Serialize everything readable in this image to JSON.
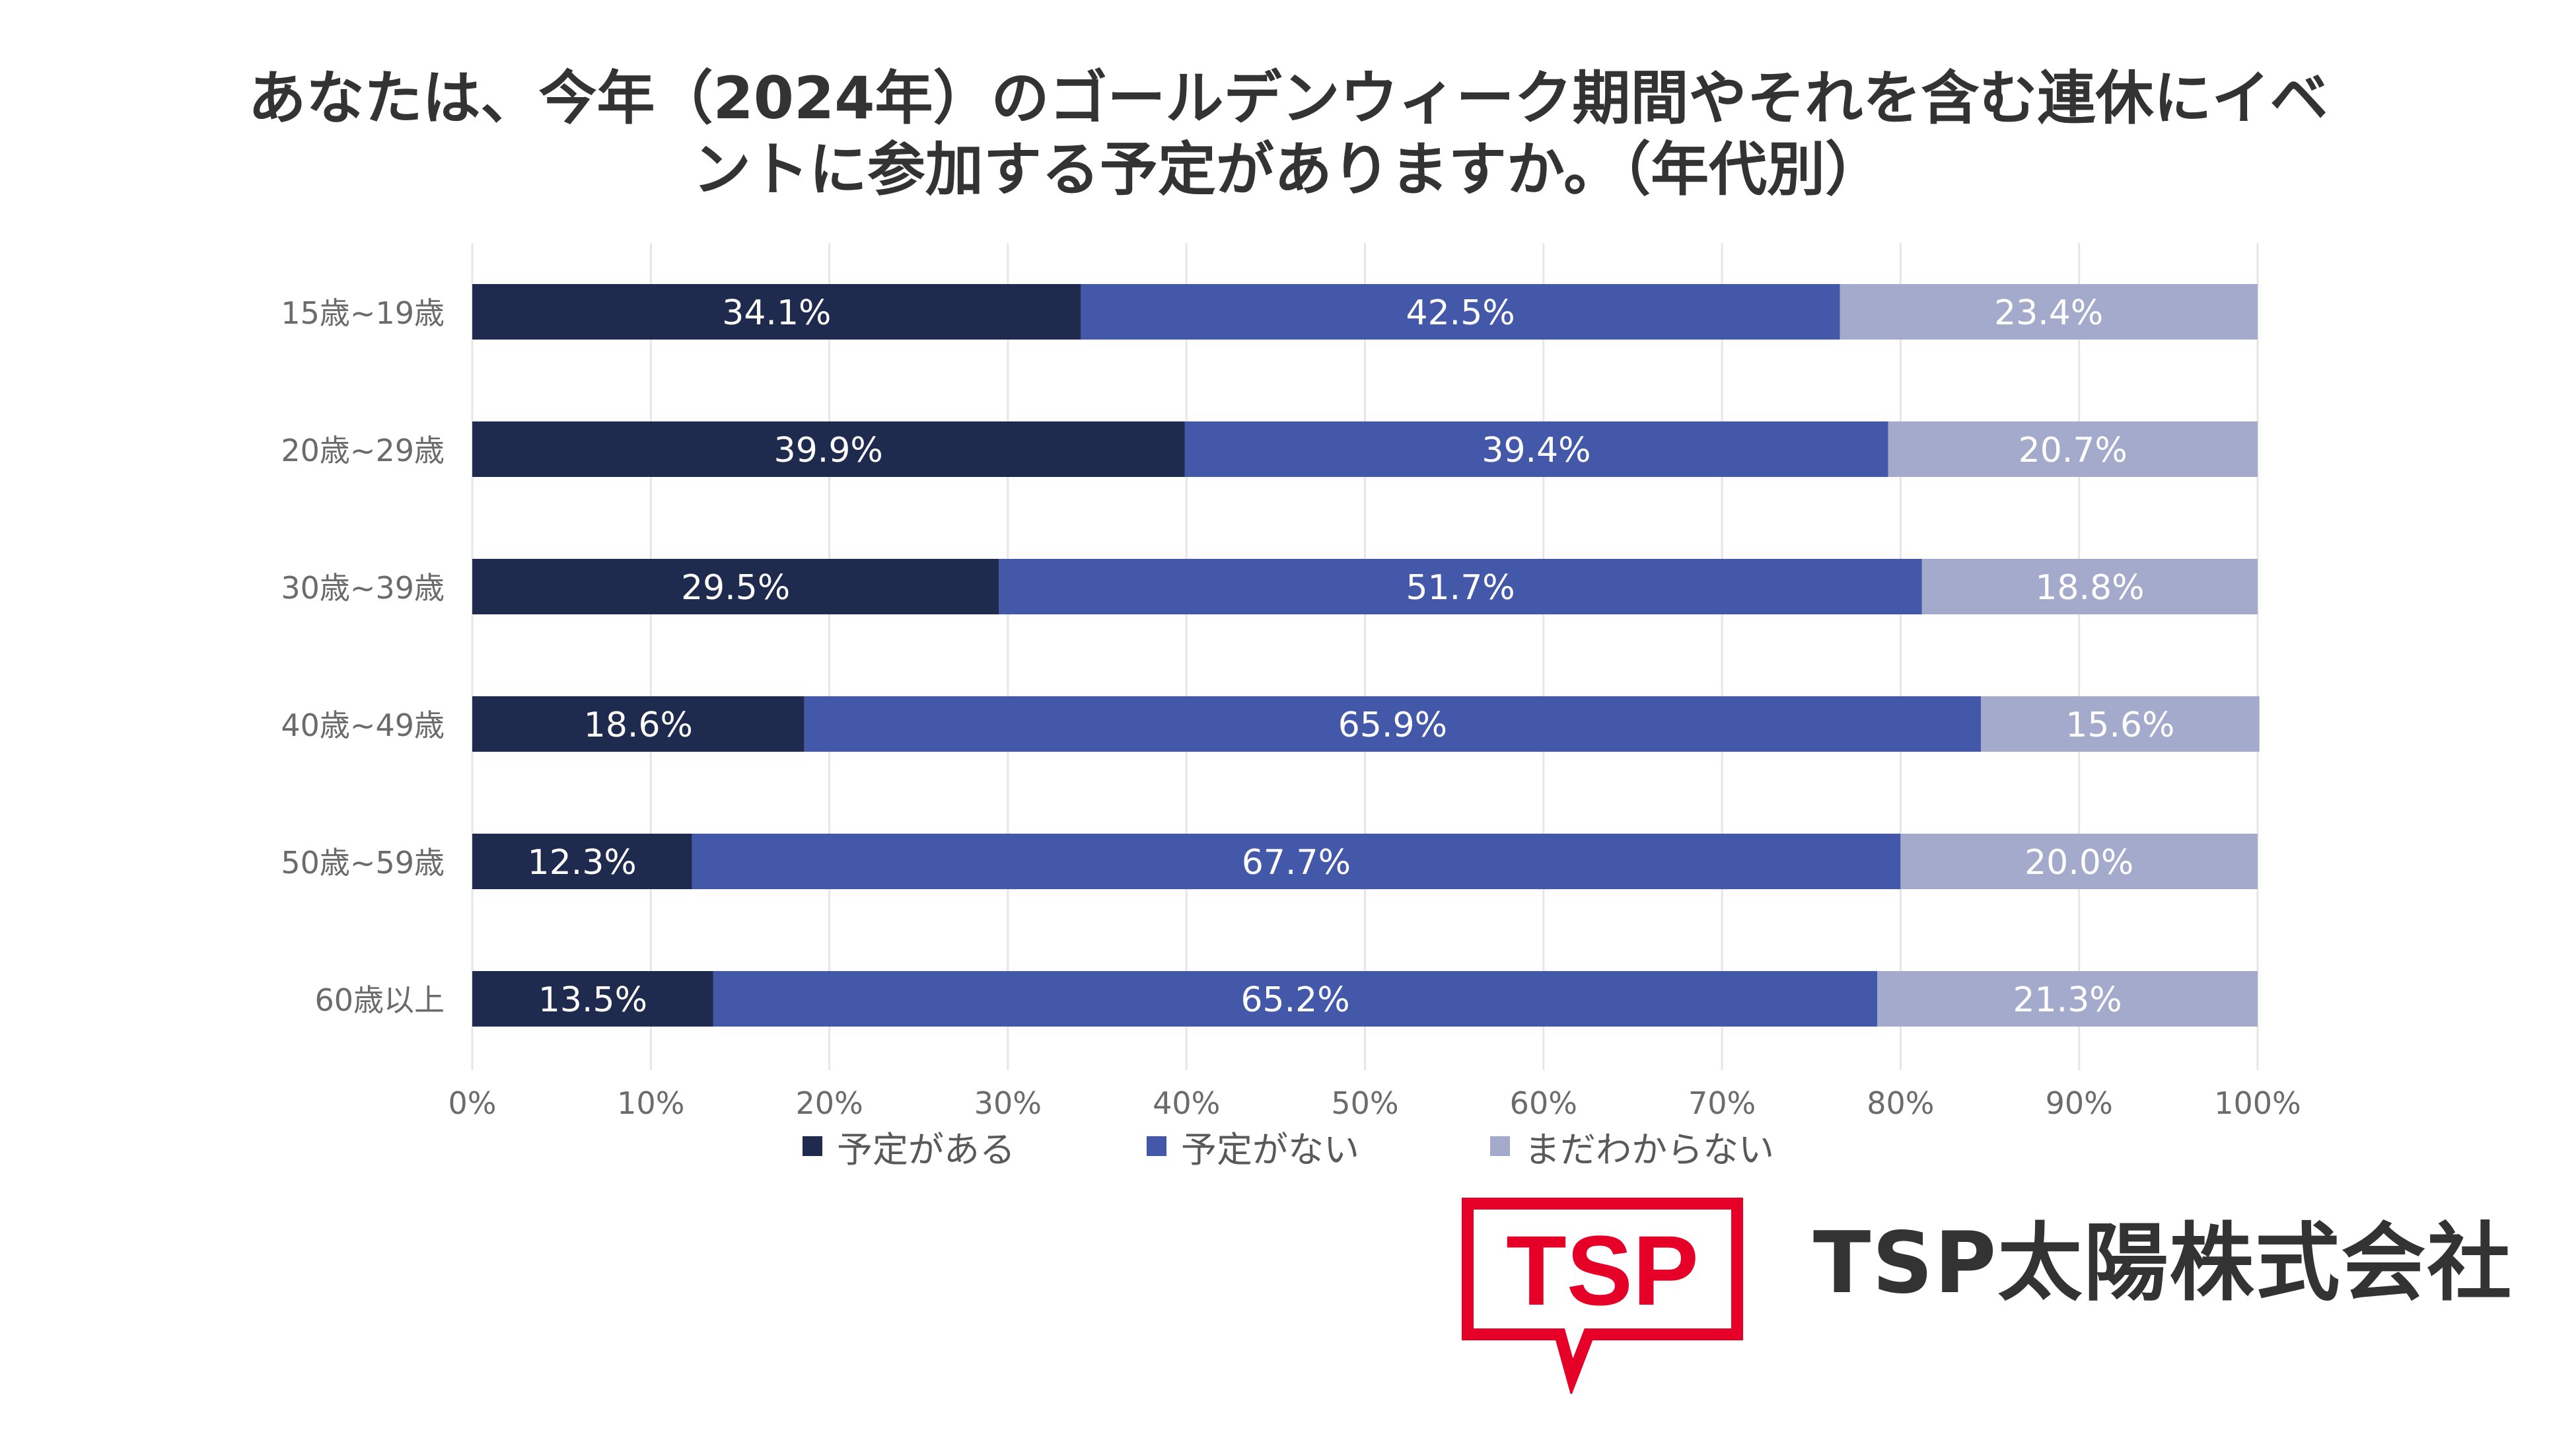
{
  "title": {
    "line1": "あなたは、今年（2024年）のゴールデンウィーク期間やそれを含む連休にイベ",
    "line2": "ントに参加する予定がありますか。（年代別）"
  },
  "colors": {
    "planned": "#1f2a4f",
    "not_planned": "#4358a8",
    "unknown": "#a3aacb",
    "grid": "#e6e6e6",
    "axis_text": "#6b6b6b",
    "brand_red": "#e60028"
  },
  "chart_data": {
    "type": "bar",
    "orientation": "horizontal",
    "stacked": true,
    "categories": [
      "15歳~19歳",
      "20歳~29歳",
      "30歳~39歳",
      "40歳~49歳",
      "50歳~59歳",
      "60歳以上"
    ],
    "series": [
      {
        "name": "予定がある",
        "values": [
          34.1,
          39.9,
          29.5,
          18.6,
          12.3,
          13.5
        ]
      },
      {
        "name": "予定がない",
        "values": [
          42.5,
          39.4,
          51.7,
          65.9,
          67.7,
          65.2
        ]
      },
      {
        "name": "まだわからない",
        "values": [
          23.4,
          20.7,
          18.8,
          15.6,
          20.0,
          21.3
        ]
      }
    ],
    "data_labels": [
      [
        "34.1%",
        "42.5%",
        "23.4%"
      ],
      [
        "39.9%",
        "39.4%",
        "20.7%"
      ],
      [
        "29.5%",
        "51.7%",
        "18.8%"
      ],
      [
        "18.6%",
        "65.9%",
        "15.6%"
      ],
      [
        "12.3%",
        "67.7%",
        "20.0%"
      ],
      [
        "13.5%",
        "65.2%",
        "21.3%"
      ]
    ],
    "x_ticks": [
      "0%",
      "10%",
      "20%",
      "30%",
      "40%",
      "50%",
      "60%",
      "70%",
      "80%",
      "90%",
      "100%"
    ],
    "xlim": [
      0,
      100
    ],
    "grid": true,
    "legend_position": "bottom"
  },
  "legend": {
    "items": [
      {
        "label": "予定がある"
      },
      {
        "label": "予定がない"
      },
      {
        "label": "まだわからない"
      }
    ]
  },
  "logo": {
    "mark_text": "TSP",
    "company_name": "TSP太陽株式会社"
  }
}
